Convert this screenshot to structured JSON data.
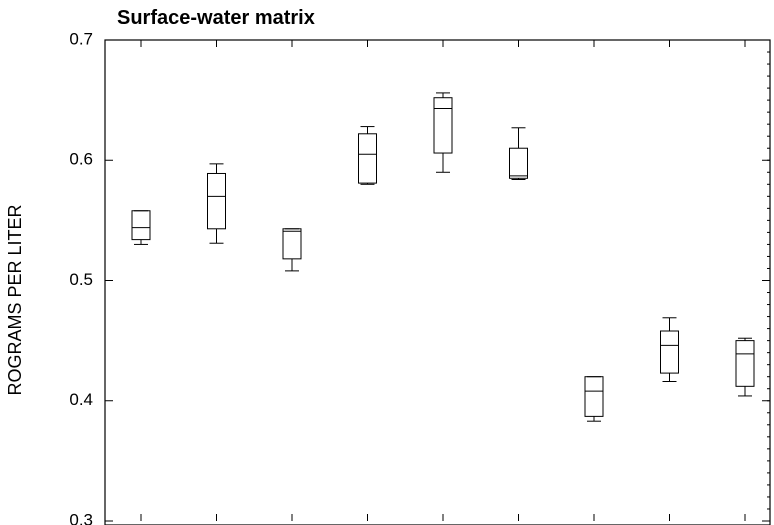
{
  "chart_data": {
    "type": "boxplot",
    "title": "Surface-water matrix",
    "ylabel": "ROGRAMS PER LITER",
    "xlabel": "",
    "ylim": [
      0.3,
      0.7
    ],
    "yticks": [
      "0.3",
      "0.4",
      "0.5",
      "0.6",
      "0.7"
    ],
    "grid": false,
    "boxes": [
      {
        "min": 0.53,
        "q1": 0.534,
        "median": 0.544,
        "q3": 0.558,
        "max": 0.558
      },
      {
        "min": 0.531,
        "q1": 0.543,
        "median": 0.57,
        "q3": 0.589,
        "max": 0.597
      },
      {
        "min": 0.508,
        "q1": 0.518,
        "median": 0.541,
        "q3": 0.543,
        "max": 0.543
      },
      {
        "min": 0.58,
        "q1": 0.581,
        "median": 0.605,
        "q3": 0.622,
        "max": 0.628
      },
      {
        "min": 0.59,
        "q1": 0.606,
        "median": 0.643,
        "q3": 0.652,
        "max": 0.656
      },
      {
        "min": 0.584,
        "q1": 0.585,
        "median": 0.587,
        "q3": 0.61,
        "max": 0.627
      },
      {
        "min": 0.383,
        "q1": 0.387,
        "median": 0.408,
        "q3": 0.42,
        "max": 0.42
      },
      {
        "min": 0.416,
        "q1": 0.423,
        "median": 0.446,
        "q3": 0.458,
        "max": 0.469
      },
      {
        "min": 0.404,
        "q1": 0.412,
        "median": 0.439,
        "q3": 0.45,
        "max": 0.452
      }
    ]
  }
}
